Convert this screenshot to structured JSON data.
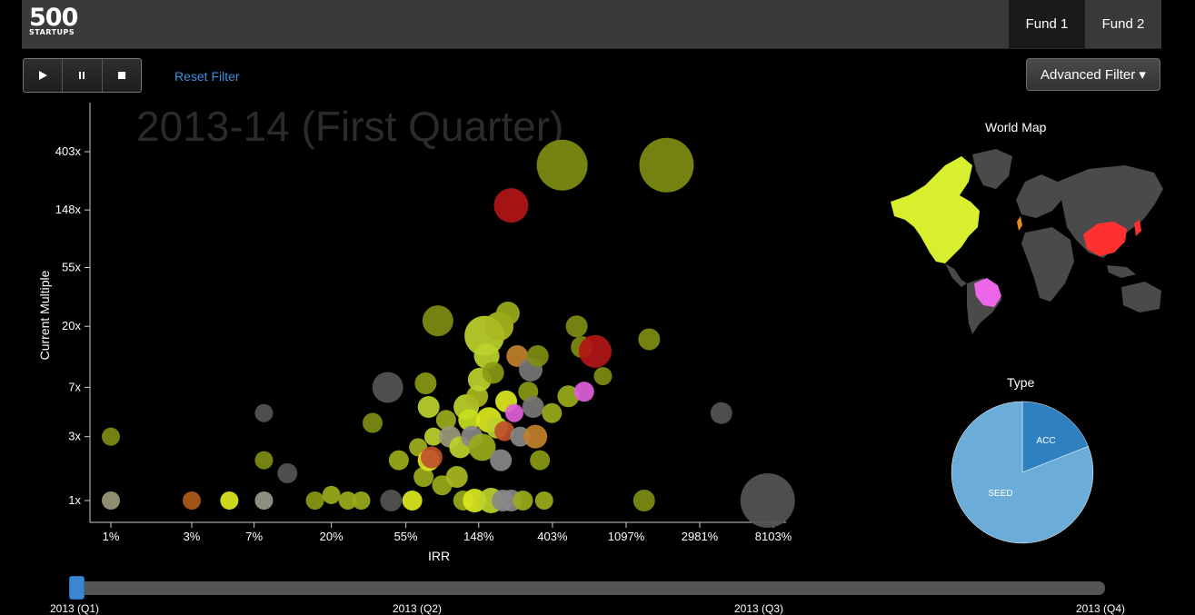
{
  "header": {
    "logo_number": "500",
    "logo_subtext": "STARTUPS",
    "tabs": [
      {
        "label": "Fund 1",
        "active": true
      },
      {
        "label": "Fund 2",
        "active": false
      }
    ]
  },
  "controls": {
    "play_icon": "play-icon",
    "pause_icon": "pause-icon",
    "stop_icon": "stop-icon",
    "reset_filter": "Reset Filter",
    "advanced_filter": "Advanced Filter",
    "advanced_filter_caret": "▾"
  },
  "colors": {
    "background": "#000000",
    "accent_blue": "#3b86d1",
    "olive": "#7f8d12",
    "yellow_green": "#bcd22c",
    "red": "#b31616",
    "orange": "#b05a1a",
    "pink": "#e060d8",
    "gray": "#666666"
  },
  "map": {
    "title": "World Map",
    "highlighted_regions": [
      {
        "region": "North America",
        "color": "#d7ef2e"
      },
      {
        "region": "Brazil",
        "color": "#ee66e8"
      },
      {
        "region": "China",
        "color": "#ff3030"
      },
      {
        "region": "United Kingdom",
        "color": "#e08a20"
      }
    ]
  },
  "type_chart": {
    "title": "Type",
    "slices": [
      {
        "label": "ACC",
        "value": 19,
        "color": "#2f80c0"
      },
      {
        "label": "SEED",
        "value": 81,
        "color": "#6badd8"
      }
    ]
  },
  "timeline": {
    "position_fraction": 0,
    "labels": [
      "2013 (Q1)",
      "2013 (Q2)",
      "2013 (Q3)",
      "2013 (Q4)"
    ]
  },
  "chart_data": {
    "type": "scatter",
    "title": "2013-14 (First Quarter)",
    "xlabel": "IRR",
    "ylabel": "Current Multiple",
    "x_scale": "log",
    "y_scale": "log",
    "xticks": [
      "1%",
      "3%",
      "7%",
      "20%",
      "55%",
      "148%",
      "403%",
      "1097%",
      "2981%",
      "8103%"
    ],
    "yticks": [
      "1x",
      "3x",
      "7x",
      "20x",
      "55x",
      "148x",
      "403x"
    ],
    "points": [
      {
        "x": 1,
        "y": 3,
        "r": 10,
        "color": "#7f8d12"
      },
      {
        "x": 1,
        "y": 1,
        "r": 10,
        "color": "#9a9a7a"
      },
      {
        "x": 3,
        "y": 1,
        "r": 10,
        "color": "#b05a1a"
      },
      {
        "x": 5,
        "y": 1,
        "r": 10,
        "color": "#dce81e"
      },
      {
        "x": 8,
        "y": 1,
        "r": 10,
        "color": "#9a9a8a"
      },
      {
        "x": 8,
        "y": 4.5,
        "r": 10,
        "color": "#555555"
      },
      {
        "x": 8,
        "y": 2,
        "r": 10,
        "color": "#7f8d12"
      },
      {
        "x": 11,
        "y": 1.6,
        "r": 11,
        "color": "#555555"
      },
      {
        "x": 16,
        "y": 1,
        "r": 10,
        "color": "#8a9a14"
      },
      {
        "x": 20,
        "y": 1.1,
        "r": 10,
        "color": "#9aab1a"
      },
      {
        "x": 25,
        "y": 1,
        "r": 10,
        "color": "#9aab1a"
      },
      {
        "x": 30,
        "y": 1,
        "r": 10,
        "color": "#9aab1a"
      },
      {
        "x": 35,
        "y": 3.8,
        "r": 11,
        "color": "#7f8d12"
      },
      {
        "x": 43,
        "y": 7,
        "r": 17,
        "color": "#555555"
      },
      {
        "x": 45,
        "y": 1,
        "r": 12,
        "color": "#555555"
      },
      {
        "x": 50,
        "y": 2,
        "r": 11,
        "color": "#9aab1a"
      },
      {
        "x": 60,
        "y": 1,
        "r": 11,
        "color": "#dce81e"
      },
      {
        "x": 65,
        "y": 2.5,
        "r": 10,
        "color": "#a0b020"
      },
      {
        "x": 70,
        "y": 1.5,
        "r": 11,
        "color": "#9aab1a"
      },
      {
        "x": 72,
        "y": 7.5,
        "r": 12,
        "color": "#8a9a14"
      },
      {
        "x": 75,
        "y": 5,
        "r": 12,
        "color": "#bcd22c"
      },
      {
        "x": 75,
        "y": 2,
        "r": 12,
        "color": "#dce81e"
      },
      {
        "x": 78,
        "y": 2.1,
        "r": 12,
        "color": "#c0502a"
      },
      {
        "x": 80,
        "y": 3,
        "r": 10,
        "color": "#bcd22c"
      },
      {
        "x": 85,
        "y": 22,
        "r": 17,
        "color": "#7f8d12"
      },
      {
        "x": 90,
        "y": 1.3,
        "r": 11,
        "color": "#9aab1a"
      },
      {
        "x": 95,
        "y": 4,
        "r": 11,
        "color": "#9aab1a"
      },
      {
        "x": 100,
        "y": 3,
        "r": 12,
        "color": "#9a9a7a"
      },
      {
        "x": 110,
        "y": 1.5,
        "r": 12,
        "color": "#aab820"
      },
      {
        "x": 115,
        "y": 2.5,
        "r": 12,
        "color": "#bcd22c"
      },
      {
        "x": 120,
        "y": 1,
        "r": 11,
        "color": "#9aab1a"
      },
      {
        "x": 125,
        "y": 5,
        "r": 14,
        "color": "#bcd22c"
      },
      {
        "x": 130,
        "y": 4,
        "r": 12,
        "color": "#c8e020"
      },
      {
        "x": 135,
        "y": 3,
        "r": 12,
        "color": "#888888"
      },
      {
        "x": 140,
        "y": 1,
        "r": 13,
        "color": "#dce81e"
      },
      {
        "x": 145,
        "y": 6,
        "r": 12,
        "color": "#aab820"
      },
      {
        "x": 150,
        "y": 8,
        "r": 13,
        "color": "#bcd22c"
      },
      {
        "x": 155,
        "y": 2.5,
        "r": 15,
        "color": "#9aab1a"
      },
      {
        "x": 160,
        "y": 17,
        "r": 22,
        "color": "#bcd22c"
      },
      {
        "x": 165,
        "y": 12,
        "r": 14,
        "color": "#bcd22c"
      },
      {
        "x": 170,
        "y": 4,
        "r": 14,
        "color": "#dce81e"
      },
      {
        "x": 175,
        "y": 1,
        "r": 14,
        "color": "#bcd22c"
      },
      {
        "x": 180,
        "y": 9,
        "r": 12,
        "color": "#8a9a14"
      },
      {
        "x": 190,
        "y": 3.5,
        "r": 12,
        "color": "#bcd22c"
      },
      {
        "x": 195,
        "y": 20,
        "r": 16,
        "color": "#aab820"
      },
      {
        "x": 200,
        "y": 2,
        "r": 12,
        "color": "#888888"
      },
      {
        "x": 205,
        "y": 1,
        "r": 12,
        "color": "#888888"
      },
      {
        "x": 210,
        "y": 3.3,
        "r": 11,
        "color": "#c0502a"
      },
      {
        "x": 215,
        "y": 5.5,
        "r": 12,
        "color": "#dce81e"
      },
      {
        "x": 220,
        "y": 25,
        "r": 13,
        "color": "#9aab1a"
      },
      {
        "x": 230,
        "y": 1,
        "r": 12,
        "color": "#888888"
      },
      {
        "x": 230,
        "y": 160,
        "r": 19,
        "color": "#b31616"
      },
      {
        "x": 240,
        "y": 4.5,
        "r": 10,
        "color": "#e060d8"
      },
      {
        "x": 250,
        "y": 12,
        "r": 12,
        "color": "#c0802a"
      },
      {
        "x": 260,
        "y": 3,
        "r": 11,
        "color": "#888888"
      },
      {
        "x": 270,
        "y": 1,
        "r": 11,
        "color": "#9aab1a"
      },
      {
        "x": 290,
        "y": 6.5,
        "r": 11,
        "color": "#8a9a14"
      },
      {
        "x": 300,
        "y": 9.5,
        "r": 13,
        "color": "#777777"
      },
      {
        "x": 310,
        "y": 5,
        "r": 12,
        "color": "#777777"
      },
      {
        "x": 320,
        "y": 3,
        "r": 13,
        "color": "#c0802a"
      },
      {
        "x": 330,
        "y": 12,
        "r": 12,
        "color": "#7f8d12"
      },
      {
        "x": 340,
        "y": 2,
        "r": 11,
        "color": "#8a9a14"
      },
      {
        "x": 360,
        "y": 1,
        "r": 10,
        "color": "#9aab1a"
      },
      {
        "x": 400,
        "y": 4.5,
        "r": 11,
        "color": "#9aab1a"
      },
      {
        "x": 460,
        "y": 320,
        "r": 28,
        "color": "#7f8d12"
      },
      {
        "x": 500,
        "y": 6,
        "r": 12,
        "color": "#9aab1a"
      },
      {
        "x": 560,
        "y": 20,
        "r": 12,
        "color": "#7f8d12"
      },
      {
        "x": 600,
        "y": 14,
        "r": 12,
        "color": "#7f8d12"
      },
      {
        "x": 620,
        "y": 6.5,
        "r": 11,
        "color": "#e060d8"
      },
      {
        "x": 720,
        "y": 13,
        "r": 18,
        "color": "#b31616"
      },
      {
        "x": 800,
        "y": 8.5,
        "r": 10,
        "color": "#7f8d12"
      },
      {
        "x": 1400,
        "y": 1,
        "r": 12,
        "color": "#7f8d12"
      },
      {
        "x": 1500,
        "y": 16,
        "r": 12,
        "color": "#7f8d12"
      },
      {
        "x": 1900,
        "y": 320,
        "r": 30,
        "color": "#7f8d12"
      },
      {
        "x": 4000,
        "y": 4.5,
        "r": 12,
        "color": "#555555"
      },
      {
        "x": 7500,
        "y": 1,
        "r": 30,
        "color": "#555555"
      }
    ]
  }
}
